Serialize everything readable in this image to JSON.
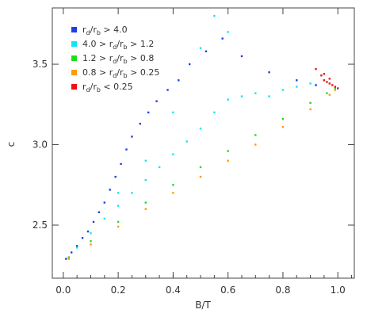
{
  "chart_data": {
    "type": "scatter",
    "title": "",
    "xlabel": "B/T",
    "ylabel": "c",
    "xlim": [
      -0.04,
      1.06
    ],
    "ylim": [
      2.17,
      3.85
    ],
    "x_ticks": [
      "0.0",
      "0.2",
      "0.4",
      "0.6",
      "0.8",
      "1.0"
    ],
    "x_tick_values": [
      0.0,
      0.2,
      0.4,
      0.6,
      0.8,
      1.0
    ],
    "y_ticks": [
      "2.5",
      "3.0",
      "3.5"
    ],
    "y_tick_values": [
      2.5,
      3.0,
      3.5
    ],
    "grid": false,
    "legend_position": "top-left",
    "legend": [
      {
        "label": "r_d/r_b > 4.0",
        "color": "#1f3fe6"
      },
      {
        "label": "4.0 > r_d/r_b > 1.2",
        "color": "#10e6f2"
      },
      {
        "label": "1.2 > r_d/r_b > 0.8",
        "color": "#22dc22"
      },
      {
        "label": "0.8 > r_d/r_b > 0.25",
        "color": "#ff9a00"
      },
      {
        "label": "r_d/r_b < 0.25",
        "color": "#ee1111"
      }
    ],
    "series": [
      {
        "name": "r_d/r_b > 4.0",
        "color": "#1f3fe6",
        "points": [
          [
            0.01,
            2.29
          ],
          [
            0.03,
            2.33
          ],
          [
            0.05,
            2.37
          ],
          [
            0.07,
            2.42
          ],
          [
            0.09,
            2.46
          ],
          [
            0.11,
            2.52
          ],
          [
            0.13,
            2.58
          ],
          [
            0.15,
            2.64
          ],
          [
            0.17,
            2.72
          ],
          [
            0.19,
            2.8
          ],
          [
            0.21,
            2.88
          ],
          [
            0.23,
            2.97
          ],
          [
            0.25,
            3.05
          ],
          [
            0.28,
            3.13
          ],
          [
            0.31,
            3.2
          ],
          [
            0.34,
            3.27
          ],
          [
            0.38,
            3.34
          ],
          [
            0.42,
            3.4
          ],
          [
            0.46,
            3.5
          ],
          [
            0.52,
            3.58
          ],
          [
            0.58,
            3.66
          ],
          [
            0.65,
            3.55
          ],
          [
            0.75,
            3.45
          ],
          [
            0.85,
            3.4
          ],
          [
            0.92,
            3.37
          ]
        ]
      },
      {
        "name": "4.0 > r_d/r_b > 1.2",
        "color": "#10e6f2",
        "points": [
          [
            0.05,
            2.36
          ],
          [
            0.1,
            2.45
          ],
          [
            0.15,
            2.54
          ],
          [
            0.2,
            2.62
          ],
          [
            0.25,
            2.7
          ],
          [
            0.3,
            2.78
          ],
          [
            0.35,
            2.86
          ],
          [
            0.4,
            2.94
          ],
          [
            0.45,
            3.02
          ],
          [
            0.5,
            3.1
          ],
          [
            0.55,
            3.2
          ],
          [
            0.6,
            3.28
          ],
          [
            0.65,
            3.3
          ],
          [
            0.7,
            3.32
          ],
          [
            0.75,
            3.3
          ],
          [
            0.8,
            3.34
          ],
          [
            0.85,
            3.36
          ],
          [
            0.9,
            3.38
          ],
          [
            0.95,
            3.4
          ],
          [
            0.55,
            3.8
          ],
          [
            0.6,
            3.7
          ],
          [
            0.5,
            3.6
          ],
          [
            0.4,
            3.2
          ],
          [
            0.3,
            2.9
          ],
          [
            0.2,
            2.7
          ]
        ]
      },
      {
        "name": "1.2 > r_d/r_b > 0.8",
        "color": "#22dc22",
        "points": [
          [
            0.02,
            2.3
          ],
          [
            0.1,
            2.4
          ],
          [
            0.2,
            2.52
          ],
          [
            0.3,
            2.64
          ],
          [
            0.4,
            2.75
          ],
          [
            0.5,
            2.86
          ],
          [
            0.6,
            2.96
          ],
          [
            0.7,
            3.06
          ],
          [
            0.8,
            3.16
          ],
          [
            0.9,
            3.26
          ],
          [
            0.96,
            3.32
          ],
          [
            0.99,
            3.35
          ]
        ]
      },
      {
        "name": "0.8 > r_d/r_b > 0.25",
        "color": "#ff9a00",
        "points": [
          [
            0.02,
            2.29
          ],
          [
            0.1,
            2.38
          ],
          [
            0.2,
            2.49
          ],
          [
            0.3,
            2.6
          ],
          [
            0.4,
            2.7
          ],
          [
            0.5,
            2.8
          ],
          [
            0.6,
            2.9
          ],
          [
            0.7,
            3.0
          ],
          [
            0.8,
            3.11
          ],
          [
            0.9,
            3.22
          ],
          [
            0.97,
            3.31
          ],
          [
            0.99,
            3.34
          ]
        ]
      },
      {
        "name": "r_d/r_b < 0.25",
        "color": "#ee1111",
        "points": [
          [
            0.92,
            3.47
          ],
          [
            0.94,
            3.43
          ],
          [
            0.95,
            3.4
          ],
          [
            0.96,
            3.39
          ],
          [
            0.97,
            3.38
          ],
          [
            0.98,
            3.37
          ],
          [
            0.99,
            3.36
          ],
          [
            1.0,
            3.35
          ],
          [
            0.97,
            3.41
          ],
          [
            0.95,
            3.44
          ]
        ]
      }
    ]
  }
}
